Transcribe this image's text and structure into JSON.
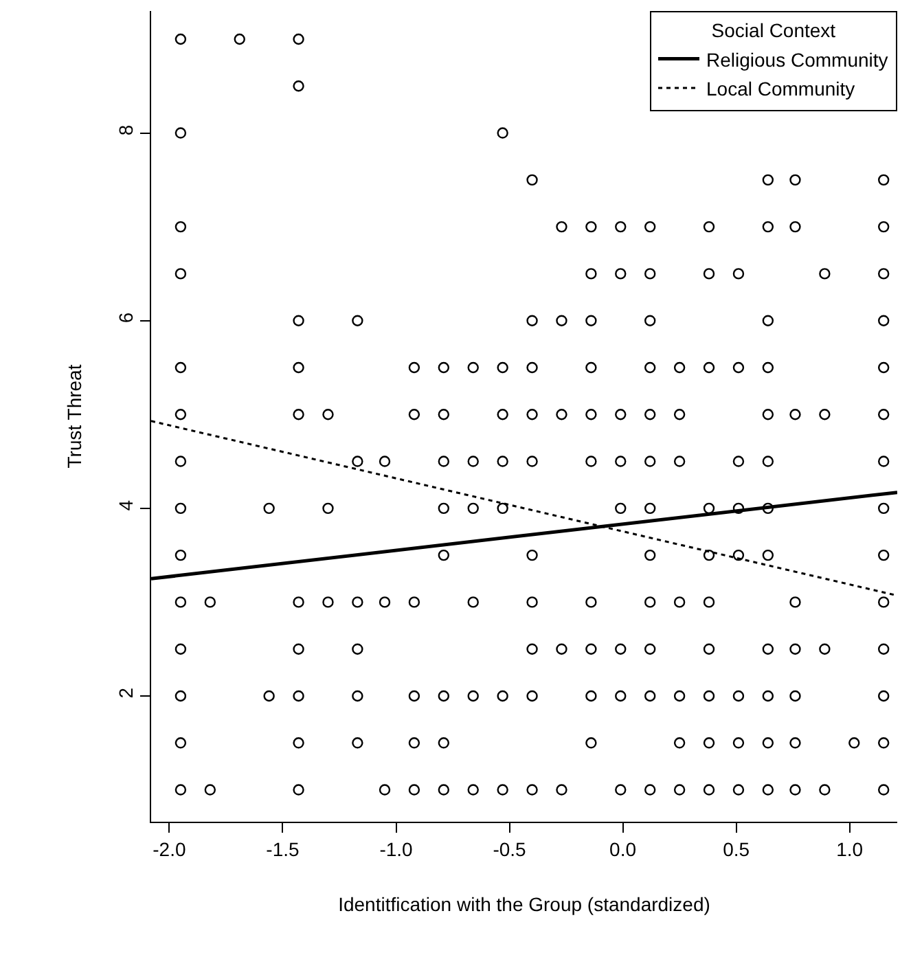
{
  "chart_data": {
    "type": "scatter",
    "xlabel": "Identitfication with the Group (standardized)",
    "ylabel": "Trust Threat",
    "legend_title": "Social Context",
    "legend": "top right",
    "grid": false,
    "marker": "circle",
    "xlim": [
      -2.08,
      1.21
    ],
    "ylim": [
      0.66,
      9.3
    ],
    "xticks": [
      {
        "value": -2,
        "label": "-2.0"
      },
      {
        "value": -1.5,
        "label": "-1.5"
      },
      {
        "value": -1,
        "label": "-1.0"
      },
      {
        "value": -0.5,
        "label": "-0.5"
      },
      {
        "value": 0,
        "label": "0.0"
      },
      {
        "value": 0.5,
        "label": "0.5"
      },
      {
        "value": 1,
        "label": "1.0"
      }
    ],
    "yticks": [
      2,
      4,
      6,
      8
    ],
    "series": [
      {
        "color": "#000000",
        "x": [
          -1.95,
          -1.69,
          -1.43,
          -1.43,
          -1.95,
          -0.53,
          -0.4,
          0.64,
          0.76,
          1.15,
          -1.95,
          -0.27,
          -0.14,
          -0.01,
          0.12,
          0.38,
          0.64,
          0.76,
          1.15,
          -1.95,
          -0.14,
          -0.01,
          0.12,
          0.38,
          0.51,
          0.89,
          1.15,
          -1.43,
          -1.17,
          -0.4,
          -0.27,
          -0.14,
          0.12,
          0.64,
          1.15,
          -1.95,
          -1.43,
          -0.92,
          -0.79,
          -0.66,
          -0.53,
          -0.4,
          -0.14,
          0.12,
          0.25,
          0.38,
          0.51,
          0.64,
          1.15,
          -1.95,
          -1.43,
          -1.3,
          -0.92,
          -0.79,
          -0.53,
          -0.4,
          -0.27,
          -0.14,
          -0.01,
          0.12,
          0.25,
          0.64,
          0.76,
          0.89,
          1.15,
          -1.95,
          -1.17,
          -1.05,
          -0.79,
          -0.66,
          -0.53,
          -0.4,
          -0.14,
          -0.01,
          0.12,
          0.25,
          0.51,
          0.64,
          1.15,
          -1.95,
          -1.56,
          -1.3,
          -0.79,
          -0.66,
          -0.53,
          -0.01,
          0.12,
          0.38,
          0.51,
          0.64,
          1.15,
          -1.95,
          -0.79,
          -0.4,
          0.12,
          0.38,
          0.51,
          0.64,
          1.15,
          -1.95,
          -1.82,
          -1.43,
          -1.3,
          -1.17,
          -1.05,
          -0.92,
          -0.66,
          -0.4,
          -0.14,
          0.12,
          0.25,
          0.38,
          0.76,
          1.15,
          -1.95,
          -1.43,
          -1.17,
          -0.4,
          -0.27,
          -0.14,
          -0.01,
          0.12,
          0.38,
          0.64,
          0.76,
          0.89,
          1.15,
          -1.95,
          -1.56,
          -1.43,
          -1.17,
          -0.92,
          -0.79,
          -0.66,
          -0.53,
          -0.4,
          -0.14,
          -0.01,
          0.12,
          0.25,
          0.38,
          0.51,
          0.64,
          0.76,
          1.15,
          -1.95,
          -1.43,
          -1.17,
          -0.92,
          -0.79,
          -0.14,
          0.25,
          0.38,
          0.51,
          0.64,
          0.76,
          1.02,
          1.15,
          -1.95,
          -1.82,
          -1.43,
          -1.05,
          -0.92,
          -0.79,
          -0.66,
          -0.53,
          -0.4,
          -0.27,
          -0.01,
          0.12,
          0.25,
          0.38,
          0.51,
          0.64,
          0.76,
          0.89,
          1.15
        ],
        "values": [
          9,
          9,
          9,
          8.5,
          8,
          8,
          7.5,
          7.5,
          7.5,
          7.5,
          7,
          7,
          7,
          7,
          7,
          7,
          7,
          7,
          7,
          6.5,
          6.5,
          6.5,
          6.5,
          6.5,
          6.5,
          6.5,
          6.5,
          6,
          6,
          6,
          6,
          6,
          6,
          6,
          6,
          5.5,
          5.5,
          5.5,
          5.5,
          5.5,
          5.5,
          5.5,
          5.5,
          5.5,
          5.5,
          5.5,
          5.5,
          5.5,
          5.5,
          5,
          5,
          5,
          5,
          5,
          5,
          5,
          5,
          5,
          5,
          5,
          5,
          5,
          5,
          5,
          5,
          4.5,
          4.5,
          4.5,
          4.5,
          4.5,
          4.5,
          4.5,
          4.5,
          4.5,
          4.5,
          4.5,
          4.5,
          4.5,
          4.5,
          4,
          4,
          4,
          4,
          4,
          4,
          4,
          4,
          4,
          4,
          4,
          4,
          3.5,
          3.5,
          3.5,
          3.5,
          3.5,
          3.5,
          3.5,
          3.5,
          3,
          3,
          3,
          3,
          3,
          3,
          3,
          3,
          3,
          3,
          3,
          3,
          3,
          3,
          3,
          2.5,
          2.5,
          2.5,
          2.5,
          2.5,
          2.5,
          2.5,
          2.5,
          2.5,
          2.5,
          2.5,
          2.5,
          2.5,
          2,
          2,
          2,
          2,
          2,
          2,
          2,
          2,
          2,
          2,
          2,
          2,
          2,
          2,
          2,
          2,
          2,
          2,
          1.5,
          1.5,
          1.5,
          1.5,
          1.5,
          1.5,
          1.5,
          1.5,
          1.5,
          1.5,
          1.5,
          1.5,
          1.5,
          1,
          1,
          1,
          1,
          1,
          1,
          1,
          1,
          1,
          1,
          1,
          1,
          1,
          1,
          1,
          1,
          1,
          1,
          1
        ]
      },
      {
        "type": "line",
        "name": "Religious Community",
        "color": "#000000",
        "line_style": "solid",
        "marker": "none",
        "x": [
          -2.08,
          1.21
        ],
        "values": [
          3.25,
          4.17
        ]
      },
      {
        "type": "line",
        "name": "Local Community",
        "color": "#000000",
        "line_style": "dotted",
        "marker": "none",
        "x": [
          -2.08,
          1.21
        ],
        "values": [
          4.93,
          3.07
        ]
      }
    ]
  }
}
